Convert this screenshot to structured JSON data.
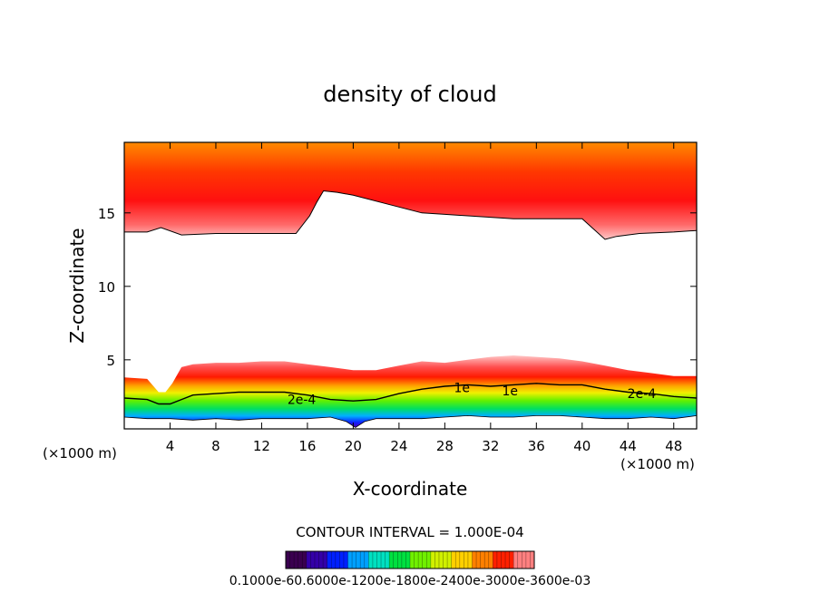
{
  "chart_data": {
    "type": "heatmap",
    "title": "density of cloud",
    "xlabel": "X-coordinate",
    "ylabel": "Z-coordinate",
    "x_unit_left": "(×1000 m)",
    "x_unit_right": "(×1000 m)",
    "xlim": [
      0,
      50
    ],
    "ylim": [
      0.3,
      19.8
    ],
    "x_ticks": [
      4,
      8,
      12,
      16,
      20,
      24,
      28,
      32,
      36,
      40,
      44,
      48
    ],
    "x_tick_labels": [
      "4",
      "8",
      "12",
      "16",
      "20",
      "24",
      "28",
      "32",
      "36",
      "40",
      "44",
      "48"
    ],
    "y_ticks": [
      5,
      10,
      15
    ],
    "y_tick_labels": [
      "5",
      "10",
      "15"
    ],
    "contour_interval_text": "CONTOUR INTERVAL = 1.000E-04",
    "contour_labels": [
      {
        "text": "2e-4",
        "x": 15.5,
        "y": 2.3
      },
      {
        "text": "2e-4",
        "x": 45.2,
        "y": 2.7
      },
      {
        "text": "1e",
        "x": 29.5,
        "y": 3.1
      },
      {
        "text": "1e",
        "x": 33.7,
        "y": 2.9
      }
    ],
    "upper_cloud_base": {
      "x": [
        0,
        2,
        3.2,
        5,
        8,
        12,
        15,
        16.2,
        16.8,
        17.4,
        18.6,
        20,
        22,
        24,
        26,
        28,
        30,
        32,
        34,
        36,
        38,
        40,
        41,
        42,
        43,
        45,
        48,
        50
      ],
      "z": [
        13.7,
        13.7,
        14.0,
        13.5,
        13.6,
        13.6,
        13.6,
        14.8,
        15.7,
        16.5,
        16.4,
        16.2,
        15.8,
        15.4,
        15.0,
        14.9,
        14.8,
        14.7,
        14.6,
        14.6,
        14.6,
        14.6,
        13.9,
        13.2,
        13.4,
        13.6,
        13.7,
        13.8
      ]
    },
    "lower_cloud_top": {
      "x": [
        0,
        2,
        3,
        3.6,
        4.2,
        5,
        6,
        8,
        10,
        12,
        14,
        16,
        18,
        20,
        22,
        24,
        26,
        28,
        30,
        32,
        34,
        36,
        38,
        40,
        42,
        44,
        46,
        48,
        50
      ],
      "z": [
        3.8,
        3.7,
        2.8,
        2.8,
        3.4,
        4.5,
        4.7,
        4.8,
        4.8,
        4.9,
        4.9,
        4.7,
        4.5,
        4.3,
        4.3,
        4.6,
        4.9,
        4.8,
        5.0,
        5.2,
        5.3,
        5.2,
        5.1,
        4.9,
        4.6,
        4.3,
        4.1,
        3.9,
        3.9
      ]
    },
    "contour_2e4": {
      "x": [
        0,
        2,
        3,
        4,
        5,
        6,
        8,
        10,
        12,
        14,
        16,
        18,
        20,
        22,
        24,
        26,
        28,
        30,
        32,
        34,
        36,
        38,
        40,
        42,
        44,
        46,
        48,
        50
      ],
      "z": [
        2.4,
        2.3,
        2.0,
        2.0,
        2.3,
        2.6,
        2.7,
        2.8,
        2.8,
        2.8,
        2.6,
        2.3,
        2.2,
        2.3,
        2.7,
        3.0,
        3.2,
        3.3,
        3.2,
        3.3,
        3.4,
        3.3,
        3.3,
        3.0,
        2.8,
        2.7,
        2.5,
        2.4
      ]
    },
    "lower_cloud_base": {
      "x": [
        0,
        2,
        4,
        6,
        8,
        10,
        12,
        14,
        16,
        18,
        19.4,
        20.2,
        21,
        22,
        24,
        26,
        28,
        30,
        32,
        34,
        36,
        38,
        40,
        42,
        44,
        46,
        48,
        50
      ],
      "z": [
        1.1,
        1.0,
        1.0,
        0.9,
        1.0,
        0.9,
        1.0,
        1.0,
        1.0,
        1.1,
        0.8,
        0.4,
        0.8,
        1.0,
        1.0,
        1.0,
        1.1,
        1.2,
        1.1,
        1.1,
        1.2,
        1.2,
        1.1,
        1.0,
        1.0,
        1.1,
        1.0,
        1.2
      ]
    },
    "colorbar": {
      "colors": [
        "#3a004f",
        "#3400a8",
        "#0020ff",
        "#00a0ff",
        "#00e0c0",
        "#00e040",
        "#70f000",
        "#d0f000",
        "#ffd000",
        "#ff8000",
        "#ff2000",
        "#ff8080"
      ],
      "labels_text": "0.1000e-60.6000e-1200e-1800e-2400e-3000e-3600e-03"
    }
  }
}
